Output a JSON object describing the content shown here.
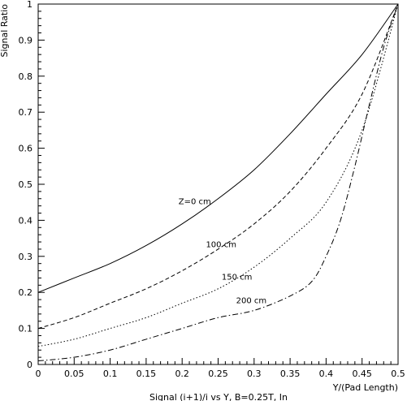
{
  "chart_data": {
    "type": "line",
    "title": "",
    "xlabel": "Y/(Pad Length)",
    "ylabel": "Signal Ratio",
    "caption": "Signal (i+1)/i vs Y, B=0.25T, In",
    "xlim": [
      0,
      0.5
    ],
    "ylim": [
      0,
      1
    ],
    "grid": false,
    "xticks": [
      "0",
      "0.05",
      "0.1",
      "0.15",
      "0.2",
      "0.25",
      "0.3",
      "0.35",
      "0.4",
      "0.45",
      "0.5"
    ],
    "yticks": [
      "0",
      "0.1",
      "0.2",
      "0.3",
      "0.4",
      "0.5",
      "0.6",
      "0.7",
      "0.8",
      "0.9",
      "1"
    ],
    "series": [
      {
        "name": "Z=0 cm",
        "style": "solid",
        "x": [
          0,
          0.05,
          0.1,
          0.15,
          0.2,
          0.25,
          0.3,
          0.35,
          0.4,
          0.45,
          0.5
        ],
        "y": [
          0.2,
          0.24,
          0.28,
          0.33,
          0.39,
          0.46,
          0.54,
          0.64,
          0.75,
          0.86,
          1.0
        ]
      },
      {
        "name": "100 cm",
        "style": "dashed",
        "x": [
          0,
          0.05,
          0.1,
          0.15,
          0.2,
          0.25,
          0.3,
          0.35,
          0.4,
          0.45,
          0.5
        ],
        "y": [
          0.1,
          0.13,
          0.17,
          0.21,
          0.26,
          0.32,
          0.39,
          0.48,
          0.6,
          0.75,
          1.0
        ]
      },
      {
        "name": "150 cm",
        "style": "dotted",
        "x": [
          0,
          0.05,
          0.1,
          0.15,
          0.2,
          0.25,
          0.3,
          0.35,
          0.4,
          0.45,
          0.5
        ],
        "y": [
          0.05,
          0.07,
          0.1,
          0.13,
          0.17,
          0.21,
          0.27,
          0.35,
          0.45,
          0.65,
          1.0
        ]
      },
      {
        "name": "200 cm",
        "style": "dashdot",
        "x": [
          0,
          0.05,
          0.1,
          0.15,
          0.2,
          0.25,
          0.3,
          0.35,
          0.38,
          0.4,
          0.42,
          0.44,
          0.46,
          0.48,
          0.5
        ],
        "y": [
          0.01,
          0.02,
          0.04,
          0.07,
          0.1,
          0.13,
          0.15,
          0.19,
          0.23,
          0.3,
          0.4,
          0.55,
          0.72,
          0.88,
          1.0
        ]
      }
    ],
    "annotations": [
      {
        "text": "Z=0 cm",
        "x": 0.195,
        "y": 0.445
      },
      {
        "text": "100 cm",
        "x": 0.233,
        "y": 0.325
      },
      {
        "text": "150 cm",
        "x": 0.255,
        "y": 0.235
      },
      {
        "text": "200 cm",
        "x": 0.275,
        "y": 0.17
      }
    ]
  }
}
